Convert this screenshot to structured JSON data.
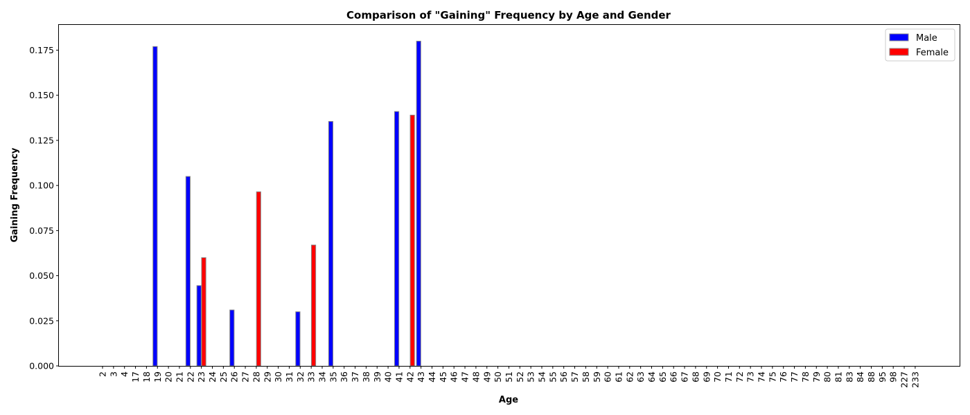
{
  "chart_data": {
    "type": "bar",
    "title": "Comparison of \"Gaining\" Frequency by Age and Gender",
    "xlabel": "Age",
    "ylabel": "Gaining Frequency",
    "ylim": [
      0,
      0.189
    ],
    "yticks": [
      "0.000",
      "0.025",
      "0.050",
      "0.075",
      "0.100",
      "0.125",
      "0.150",
      "0.175"
    ],
    "legend_position": "top-right",
    "categories": [
      "2",
      "3",
      "4",
      "17",
      "18",
      "19",
      "20",
      "21",
      "22",
      "23",
      "24",
      "25",
      "26",
      "27",
      "28",
      "29",
      "30",
      "31",
      "32",
      "33",
      "34",
      "35",
      "36",
      "37",
      "38",
      "39",
      "40",
      "41",
      "42",
      "43",
      "44",
      "45",
      "46",
      "47",
      "48",
      "49",
      "50",
      "51",
      "52",
      "53",
      "54",
      "55",
      "56",
      "57",
      "58",
      "59",
      "60",
      "61",
      "62",
      "63",
      "64",
      "65",
      "66",
      "67",
      "68",
      "69",
      "70",
      "71",
      "72",
      "73",
      "74",
      "75",
      "76",
      "77",
      "78",
      "79",
      "80",
      "81",
      "83",
      "84",
      "88",
      "95",
      "98",
      "227",
      "233"
    ],
    "series": [
      {
        "name": "Male",
        "color": "#0000ff",
        "values": [
          0,
          0,
          0,
          0,
          0,
          0.177,
          0,
          0,
          0.105,
          0.0445,
          0,
          0,
          0.031,
          0,
          0,
          0,
          0,
          0,
          0.03,
          0,
          0,
          0.1355,
          0,
          0,
          0,
          0,
          0,
          0.141,
          0,
          0.18,
          0,
          0,
          0,
          0,
          0,
          0,
          0,
          0,
          0,
          0,
          0,
          0,
          0,
          0,
          0,
          0,
          0,
          0,
          0,
          0,
          0,
          0,
          0,
          0,
          0,
          0,
          0,
          0,
          0,
          0,
          0,
          0,
          0,
          0,
          0,
          0,
          0,
          0,
          0,
          0,
          0,
          0,
          0,
          0,
          0
        ]
      },
      {
        "name": "Female",
        "color": "#ff0000",
        "values": [
          0,
          0,
          0,
          0,
          0,
          0,
          0,
          0,
          0,
          0.06,
          0,
          0,
          0,
          0,
          0.0965,
          0,
          0,
          0,
          0,
          0.067,
          0,
          0,
          0,
          0,
          0,
          0,
          0,
          0,
          0.139,
          0,
          0,
          0,
          0,
          0,
          0,
          0,
          0,
          0,
          0,
          0,
          0,
          0,
          0,
          0,
          0,
          0,
          0,
          0,
          0,
          0,
          0,
          0,
          0,
          0,
          0,
          0,
          0,
          0,
          0,
          0,
          0,
          0,
          0,
          0,
          0,
          0,
          0,
          0,
          0,
          0,
          0,
          0,
          0,
          0,
          0
        ]
      }
    ]
  }
}
